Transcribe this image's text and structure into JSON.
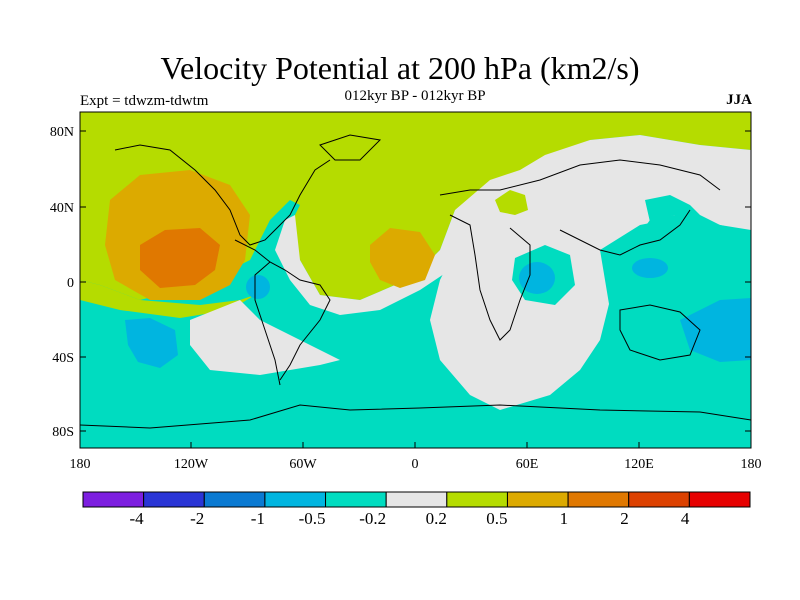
{
  "title": "Velocity Potential at 200 hPa (km2/s)",
  "subtitle": "012kyr BP - 012kyr BP",
  "expt_label": "Expt = tdwzm-tdwtm",
  "season": "JJA",
  "lat_ticks": [
    "80N",
    "40N",
    "0",
    "40S",
    "80S"
  ],
  "lon_ticks": [
    "180",
    "120W",
    "60W",
    "0",
    "60E",
    "120E",
    "180"
  ],
  "colorbar": {
    "colors": [
      "#7d1fe0",
      "#2a35d6",
      "#0a7ad2",
      "#00b5e0",
      "#00dcc0",
      "#e6e6e6",
      "#b5dc00",
      "#dcaa00",
      "#e07800",
      "#dc4100",
      "#e60000"
    ],
    "labels": [
      "-4",
      "-2",
      "-1",
      "-0.5",
      "-0.2",
      "0.2",
      "0.5",
      "1",
      "2",
      "4"
    ]
  }
}
